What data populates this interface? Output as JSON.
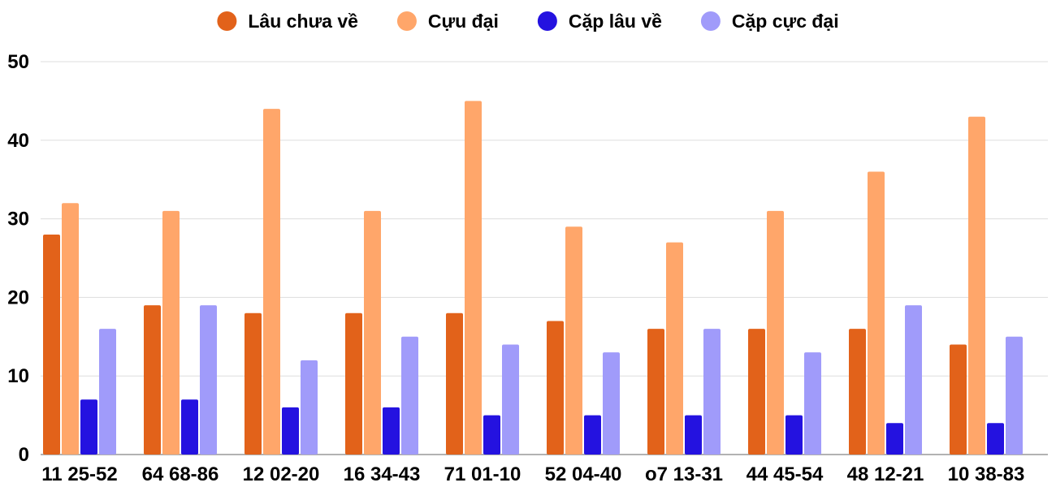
{
  "chart_data": {
    "type": "bar",
    "title": "",
    "xlabel": "",
    "ylabel": "",
    "ylim": [
      0,
      50
    ],
    "yticks": [
      0,
      10,
      20,
      30,
      40,
      50
    ],
    "grid": true,
    "legend_position": "top-center",
    "categories": [
      "11 25-52",
      "64 68-86",
      "12 02-20",
      "16 34-43",
      "71 01-10",
      "52 04-40",
      "o7 13-31",
      "44 45-54",
      "48 12-21",
      "10 38-83"
    ],
    "series": [
      {
        "name": "Lâu chưa về",
        "color": "#e2621a",
        "values": [
          28,
          19,
          18,
          18,
          18,
          17,
          16,
          16,
          16,
          14
        ]
      },
      {
        "name": "Cựu đại",
        "color": "#ffa66a",
        "values": [
          32,
          31,
          44,
          31,
          45,
          29,
          27,
          31,
          36,
          43
        ]
      },
      {
        "name": "Cặp lâu về",
        "color": "#2412e0",
        "values": [
          7,
          7,
          6,
          6,
          5,
          5,
          5,
          5,
          4,
          4
        ]
      },
      {
        "name": "Cặp cực đại",
        "color": "#a09bfa",
        "values": [
          16,
          19,
          12,
          15,
          14,
          13,
          16,
          13,
          19,
          15
        ]
      }
    ]
  }
}
